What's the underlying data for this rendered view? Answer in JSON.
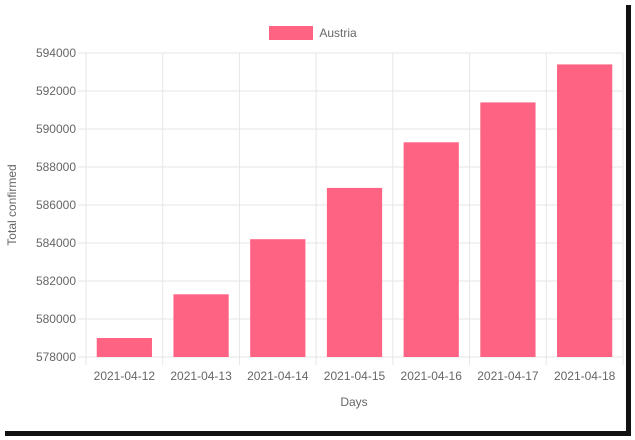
{
  "chart_data": {
    "type": "bar",
    "categories": [
      "2021-04-12",
      "2021-04-13",
      "2021-04-14",
      "2021-04-15",
      "2021-04-16",
      "2021-04-17",
      "2021-04-18"
    ],
    "series": [
      {
        "name": "Austria",
        "values": [
          579000,
          581300,
          584200,
          586900,
          589300,
          591400,
          593400
        ]
      }
    ],
    "xlabel": "Days",
    "ylabel": "Total confirmed",
    "ylim": [
      578000,
      594000
    ],
    "yticks": [
      578000,
      580000,
      582000,
      584000,
      586000,
      588000,
      590000,
      592000,
      594000
    ],
    "grid": true,
    "legend_position": "top-center",
    "colors": {
      "bar_fill": "#ff6384",
      "grid": "#e6e6e6",
      "text": "#666666"
    }
  }
}
